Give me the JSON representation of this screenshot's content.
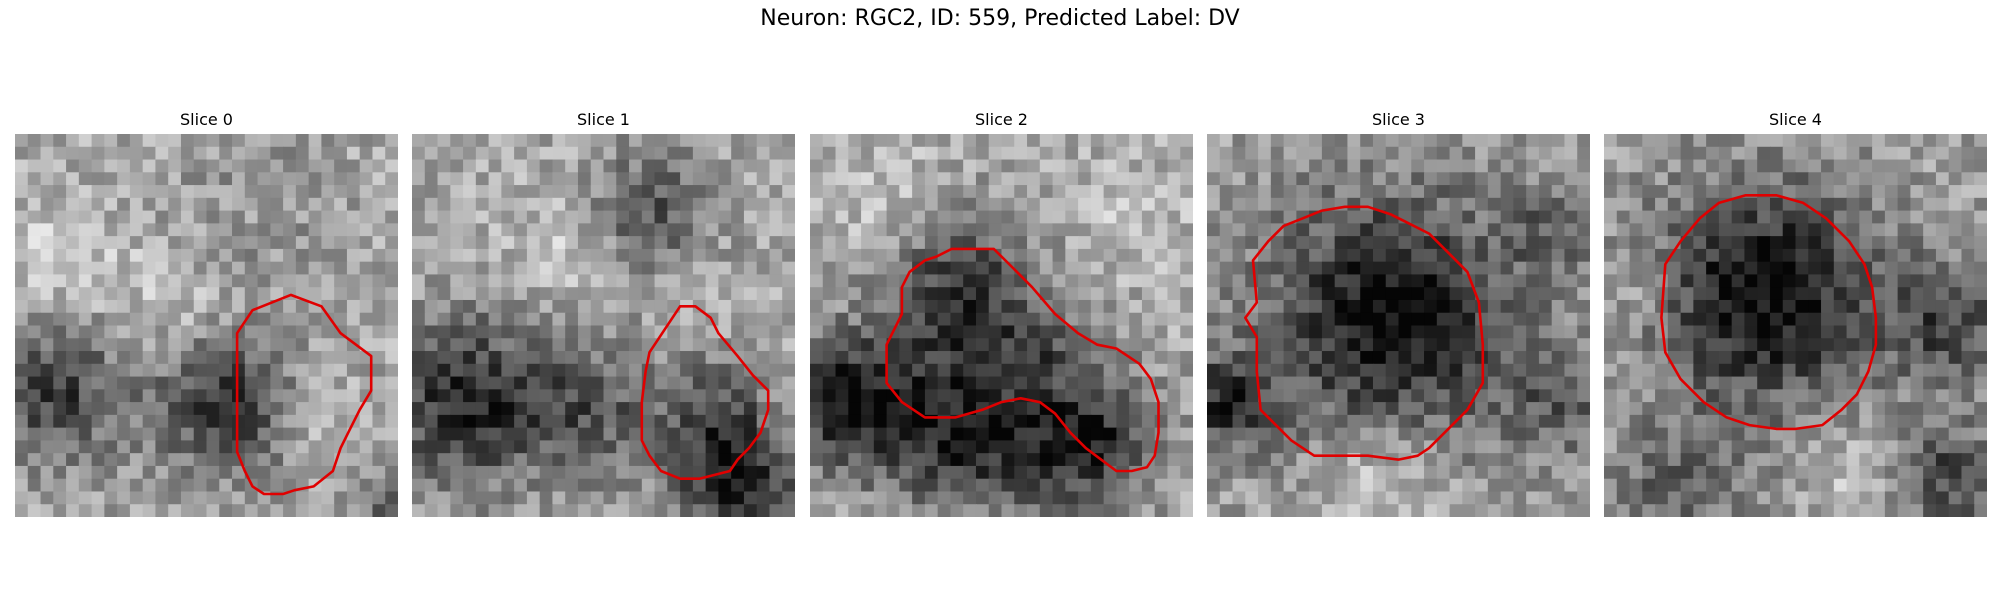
{
  "figure": {
    "title": "Neuron: RGC2, ID: 559, Predicted Label: DV"
  },
  "slices": [
    {
      "title": "Slice 0"
    },
    {
      "title": "Slice 1"
    },
    {
      "title": "Slice 2"
    },
    {
      "title": "Slice 3"
    },
    {
      "title": "Slice 4"
    }
  ],
  "colors": {
    "contour": "#e00000"
  }
}
